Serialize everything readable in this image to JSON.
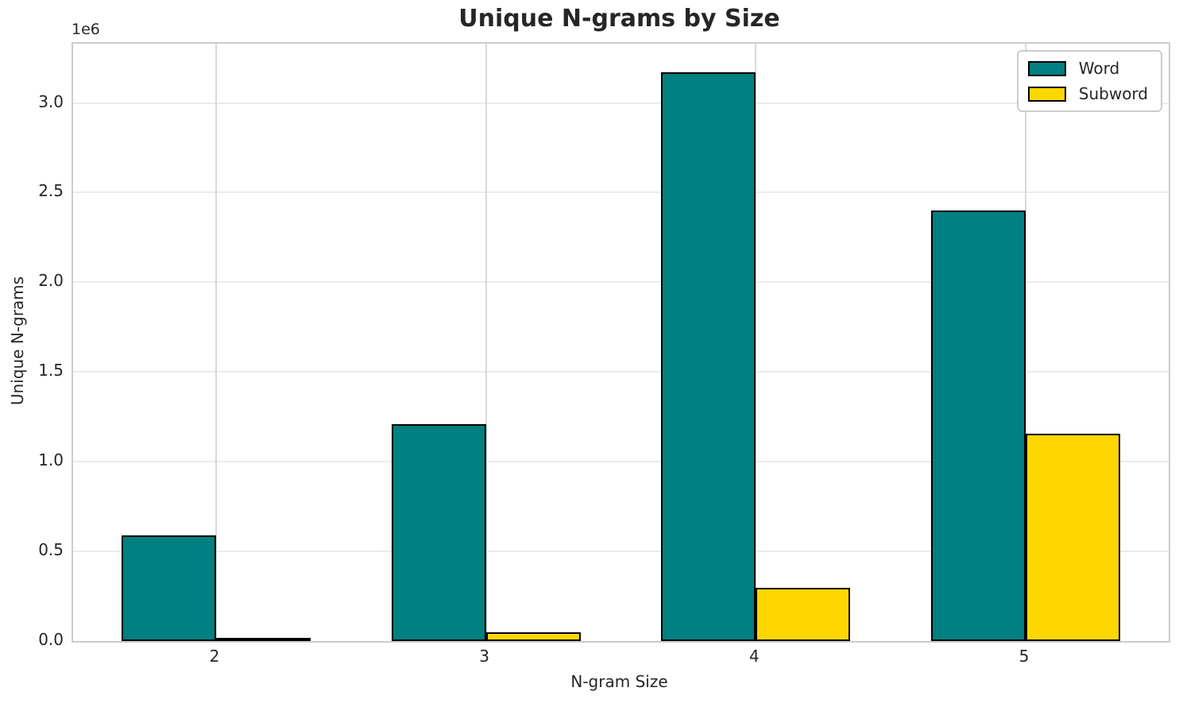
{
  "chart_data": {
    "type": "bar",
    "title": "Unique N-grams by Size",
    "xlabel": "N-gram Size",
    "ylabel": "Unique N-grams",
    "offset_text": "1e6",
    "categories": [
      "2",
      "3",
      "4",
      "5"
    ],
    "series": [
      {
        "name": "Word",
        "color": "#008080",
        "values": [
          590000,
          1210000,
          3170000,
          2400000
        ]
      },
      {
        "name": "Subword",
        "color": "#FFD700",
        "values": [
          5000,
          50000,
          295000,
          1155000
        ]
      }
    ],
    "bar_edge_color": "#000000",
    "ylim": [
      0,
      3330000
    ],
    "yticks": [
      0,
      500000,
      1000000,
      1500000,
      2000000,
      2500000,
      3000000
    ],
    "ytick_labels": [
      "0.0",
      "0.5",
      "1.0",
      "1.5",
      "2.0",
      "2.5",
      "3.0"
    ],
    "grid": true,
    "legend_position": "upper right",
    "text_color": "#262626"
  }
}
